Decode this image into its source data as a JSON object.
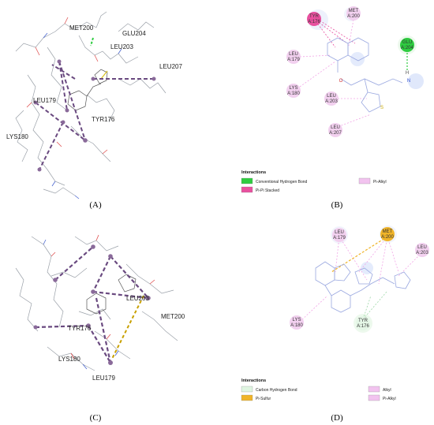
{
  "panels": {
    "A": {
      "caption": "(A)",
      "labels": [
        "MET200",
        "GLU204",
        "LEU203",
        "LEU207",
        "LEU179",
        "TYR176",
        "LYS180"
      ]
    },
    "B": {
      "caption": "(B)",
      "residues": [
        {
          "id": "tyr176",
          "line1": "TYR",
          "line2": "A:176"
        },
        {
          "id": "met200",
          "line1": "MET",
          "line2": "A:200"
        },
        {
          "id": "glu204",
          "line1": "GLU",
          "line2": "A:204"
        },
        {
          "id": "leu179",
          "line1": "LEU",
          "line2": "A:179"
        },
        {
          "id": "lys180",
          "line1": "LYS",
          "line2": "A:180"
        },
        {
          "id": "leu203",
          "line1": "LEU",
          "line2": "A:203"
        },
        {
          "id": "leu207",
          "line1": "LEU",
          "line2": "A:207"
        }
      ],
      "atom_labels": [
        "O",
        "N",
        "H",
        "S"
      ],
      "legend": {
        "title": "Interactions",
        "items": [
          {
            "label": "Conventional Hydrogen Bond",
            "color": "#2ecc40"
          },
          {
            "label": "Pi-Pi Stacked",
            "color": "#e8509f"
          },
          {
            "label": "Pi-Alkyl",
            "color": "#f2c3ef"
          }
        ]
      }
    },
    "C": {
      "caption": "(C)",
      "labels": [
        "LEU203",
        "MET200",
        "TYR176",
        "LYS180",
        "LEU179"
      ]
    },
    "D": {
      "caption": "(D)",
      "residues": [
        {
          "id": "leu179",
          "line1": "LEU",
          "line2": "A:179"
        },
        {
          "id": "met200",
          "line1": "MET",
          "line2": "A:200"
        },
        {
          "id": "leu203",
          "line1": "LEU",
          "line2": "A:203"
        },
        {
          "id": "lys180",
          "line1": "LYS",
          "line2": "A:180"
        },
        {
          "id": "tyr176",
          "line1": "TYR",
          "line2": "A:176"
        }
      ],
      "legend": {
        "title": "Interactions",
        "items": [
          {
            "label": "Carbon Hydrogen Bond",
            "color": "#dff5e1"
          },
          {
            "label": "Pi-Sulfur",
            "color": "#f0b429"
          },
          {
            "label": "Alkyl",
            "color": "#f2c3ef"
          },
          {
            "label": "Pi-Alkyl",
            "color": "#f2c3ef"
          }
        ]
      }
    }
  }
}
